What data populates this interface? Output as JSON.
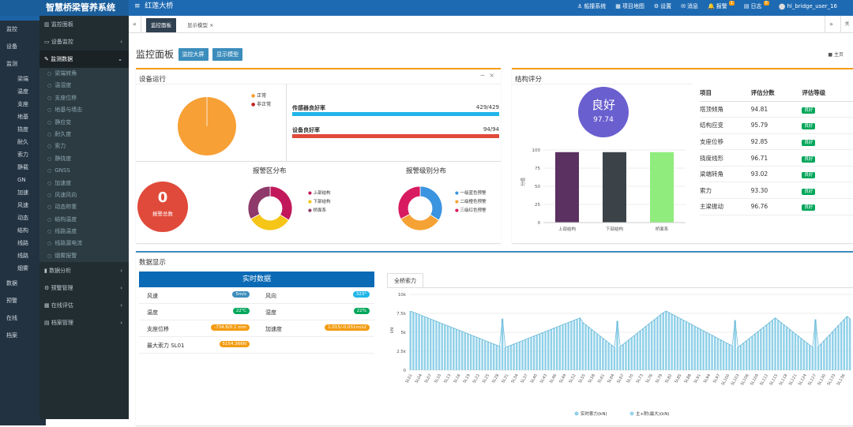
{
  "app": {
    "logo": "智慧桥梁管养系统",
    "logo_short": "智慧",
    "bridge": "红莲大桥"
  },
  "topnav": [
    {
      "label": "船撞系统",
      "icon": "ship-icon"
    },
    {
      "label": "项目地图",
      "icon": "map-icon"
    },
    {
      "label": "设置",
      "icon": "gear-icon"
    },
    {
      "label": "消息",
      "icon": "envelope-icon"
    },
    {
      "label": "报警",
      "icon": "bell-icon",
      "badge": "1"
    },
    {
      "label": "日志",
      "icon": "log-icon",
      "badge": "0"
    }
  ],
  "user": "hl_bridge_user_16",
  "leftbg": {
    "items": [
      "监控",
      "设备",
      "监测",
      "梁端",
      "温度",
      "支座",
      "地基",
      "挠度",
      "耐久",
      "索力",
      "静载",
      "GN",
      "加速",
      "风速",
      "动态",
      "结构",
      "线路",
      "线路",
      "烟雾",
      "数据",
      "预警",
      "在线",
      "档案"
    ]
  },
  "sidebar": {
    "items": [
      {
        "label": "监控面板",
        "icon": "chart-icon"
      },
      {
        "label": "设备监控",
        "icon": "monitor-icon"
      },
      {
        "label": "监测数据",
        "icon": "edit-icon"
      }
    ],
    "subs": [
      "梁端转角",
      "温湿度",
      "支座位移",
      "地基与墙击",
      "静应变",
      "耐久度",
      "索力",
      "静挠度",
      "GNSS",
      "加速度",
      "风速风向",
      "动态称重",
      "结构温度",
      "线路温度",
      "线路漏电流",
      "烟雾报警"
    ],
    "bottom": [
      {
        "label": "数据分析",
        "icon": "bar-icon"
      },
      {
        "label": "预警管理",
        "icon": "gear-icon"
      },
      {
        "label": "在线评估",
        "icon": "grid-icon"
      },
      {
        "label": "档案管理",
        "icon": "archive-icon"
      }
    ]
  },
  "tabs": {
    "active": "监控面板",
    "other": "显示模型 ×"
  },
  "header": {
    "title": "监控面板",
    "btn1": "监控大屏",
    "btn2": "显示模型",
    "crumb": "主页"
  },
  "device": {
    "title": "设备运行",
    "legend": [
      {
        "label": "正常",
        "color": "#f7a035"
      },
      {
        "label": "非正常",
        "color": "#c0201f"
      }
    ],
    "bars": [
      {
        "label": "传感器良好率",
        "value": "429/429",
        "color": "#20b5e8"
      },
      {
        "label": "设备良好率",
        "value": "94/94",
        "color": "#e04a3a"
      }
    ],
    "alarm_total": "0",
    "alarm_label": "报警总数",
    "zone_title": "报警区分布",
    "zone_legend": [
      {
        "label": "上部结构",
        "color": "#c2185b"
      },
      {
        "label": "下部结构",
        "color": "#f5c518"
      },
      {
        "label": "桥面系",
        "color": "#8e3a6a"
      }
    ],
    "level_title": "报警级别分布",
    "level_legend": [
      {
        "label": "一级蓝色预警",
        "color": "#3b94e0"
      },
      {
        "label": "二级橙色预警",
        "color": "#f5a235"
      },
      {
        "label": "三级红色预警",
        "color": "#d81b60"
      }
    ]
  },
  "score": {
    "title": "结构评分",
    "grade": "良好",
    "value": "97.74",
    "yaxis": "分值",
    "chart": {
      "categories": [
        "上部结构",
        "下部结构",
        "桥面系"
      ],
      "values": [
        97,
        97,
        97
      ],
      "ymax": 100,
      "ticks": [
        "100",
        "75",
        "50",
        "25",
        "0"
      ],
      "colors": [
        "#5b3161",
        "#3c4348",
        "#90ec7d"
      ]
    },
    "headers": [
      "项目",
      "评估分数",
      "评估等级"
    ],
    "rows": [
      {
        "name": "塔顶倾角",
        "score": "94.81",
        "grade": "良好"
      },
      {
        "name": "结构应变",
        "score": "95.79",
        "grade": "良好"
      },
      {
        "name": "支座位移",
        "score": "92.85",
        "grade": "良好"
      },
      {
        "name": "挠度线形",
        "score": "96.71",
        "grade": "良好"
      },
      {
        "name": "梁端转角",
        "score": "93.02",
        "grade": "良好"
      },
      {
        "name": "索力",
        "score": "93.30",
        "grade": "良好"
      },
      {
        "name": "主梁振动",
        "score": "96.76",
        "grade": "良好"
      }
    ]
  },
  "datashow": {
    "title": "数据显示",
    "rt_title": "实时数据",
    "rows": [
      [
        {
          "k": "风速",
          "v": "5m/s",
          "c": "#3c8dbc"
        },
        {
          "k": "风向",
          "v": "323°",
          "c": "#20b5e8"
        }
      ],
      [
        {
          "k": "温度",
          "v": "22℃",
          "c": "#00a65a"
        },
        {
          "k": "湿度",
          "v": "22%",
          "c": "#00a65a"
        }
      ],
      [
        {
          "k": "支座位移",
          "v": "-734.8/0.1 mm",
          "c": "#f39c12"
        },
        {
          "k": "加速度",
          "v": "1.015/-0.031m/s2",
          "c": "#f39c12"
        }
      ],
      [
        {
          "k": "最大索力 SL01",
          "v": "5154.36KN",
          "c": "#f39c12"
        }
      ]
    ],
    "tab": "全桥索力"
  },
  "chart_data": {
    "type": "bar",
    "ylabel": "kN",
    "ylim": [
      0,
      10000
    ],
    "yticks": [
      "10k",
      "7.5k",
      "5k",
      "2.5k",
      "0"
    ],
    "xticks": [
      "SL01",
      "SL04",
      "SL07",
      "SL10",
      "SL13",
      "SL16",
      "SL19",
      "SL22",
      "SL25",
      "SL28",
      "SL31",
      "SL34",
      "SL37",
      "SL40",
      "SL43",
      "SL46",
      "SL49",
      "SL52",
      "SL55",
      "SL58",
      "SL61",
      "SL64",
      "SL67",
      "SL70",
      "SL73",
      "SL76",
      "SL79",
      "SL82",
      "SL85",
      "SL88",
      "SL91",
      "SL94",
      "SL97",
      "SL100",
      "SL103",
      "SL106",
      "SL109",
      "SL112",
      "SL115",
      "SL118",
      "SL121",
      "SL124",
      "SL127",
      "SL130",
      "SL133",
      "SL136"
    ],
    "series": [
      {
        "name": "实时索力(kN)",
        "color": "#8fd0e8"
      },
      {
        "name": "主+附(最大)(kN)",
        "color": "#9ad3ea"
      }
    ],
    "values": [
      7800,
      7650,
      7500,
      7350,
      7200,
      7050,
      6900,
      6750,
      6600,
      6450,
      6300,
      6150,
      6000,
      5850,
      5700,
      5550,
      5400,
      5250,
      5100,
      4950,
      4800,
      4650,
      4500,
      4350,
      4200,
      4050,
      3900,
      3750,
      3600,
      3450,
      3300,
      3150,
      6800,
      3000,
      3150,
      3300,
      3450,
      3600,
      3750,
      3900,
      4050,
      4200,
      4350,
      4500,
      4650,
      4800,
      4950,
      5100,
      5250,
      5400,
      5550,
      5700,
      5850,
      6000,
      6150,
      6300,
      6450,
      6600,
      6750,
      6900,
      6300,
      6000,
      5700,
      5400,
      5100,
      4800,
      4500,
      4200,
      3900,
      3600,
      3300,
      3000,
      6500,
      3100,
      3400,
      3700,
      4000,
      4300,
      4600,
      4900,
      5200,
      5500,
      5800,
      6100,
      6400,
      6700,
      7000,
      7300,
      7600,
      7800,
      7600,
      7400,
      7200,
      7000,
      6800,
      6600,
      6400,
      6200,
      6000,
      5800,
      5600,
      5400,
      5200,
      5000,
      4800,
      4600,
      4400,
      4200,
      4000,
      3800,
      3600,
      3400,
      3200,
      6600,
      3000,
      3300,
      3600,
      3900,
      4200,
      4500,
      4800,
      5100,
      5400,
      5700,
      6000,
      6300,
      6600,
      6900,
      6600,
      6300,
      6000,
      5700,
      5400,
      5100,
      4800,
      4500,
      4200,
      3900,
      3600,
      3300,
      3000,
      6700,
      3100,
      3500,
      3900,
      4300,
      4700,
      5100,
      5500,
      5900,
      6300,
      6700,
      7100,
      6800
    ]
  }
}
